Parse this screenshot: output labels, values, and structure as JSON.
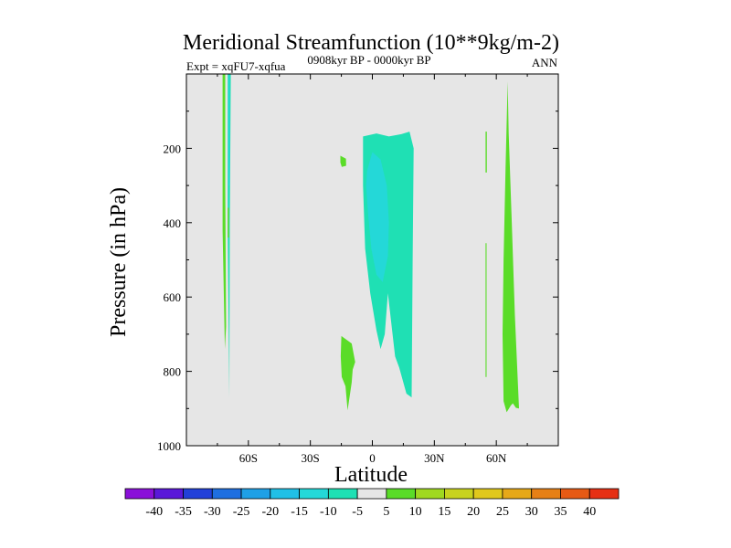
{
  "chart_data": {
    "type": "contour",
    "title": "Meridional Streamfunction (10**9kg/m-2)",
    "subtitle_left": "Expt = xqFU7-xqfua",
    "subtitle_center": "0908kyr BP - 0000kyr BP",
    "subtitle_right": "ANN",
    "xlabel": "Latitude",
    "ylabel": "Pressure (in hPa)",
    "xlim": [
      -90,
      90
    ],
    "ylim": [
      1000,
      0
    ],
    "x_ticks": [
      {
        "value": -60,
        "label": "60S"
      },
      {
        "value": -30,
        "label": "30S"
      },
      {
        "value": 0,
        "label": "0"
      },
      {
        "value": 30,
        "label": "30N"
      },
      {
        "value": 60,
        "label": "60N"
      }
    ],
    "y_ticks": [
      {
        "value": 200,
        "label": "200"
      },
      {
        "value": 400,
        "label": "400"
      },
      {
        "value": 600,
        "label": "600"
      },
      {
        "value": 800,
        "label": "800"
      },
      {
        "value": 1000,
        "label": "1000"
      }
    ],
    "background_color": "#e6e6e6",
    "colorbar": {
      "labels": [
        "-40",
        "-35",
        "-30",
        "-25",
        "-20",
        "-15",
        "-10",
        "-5",
        "5",
        "10",
        "15",
        "20",
        "25",
        "30",
        "35",
        "40"
      ],
      "colors": [
        "#8a10d8",
        "#5a18d8",
        "#2240d8",
        "#1f6fe0",
        "#1fa0e6",
        "#20c0e6",
        "#24d8d8",
        "#1fe0b4",
        "#e6e6e6",
        "#5adc28",
        "#a0d820",
        "#c8d21e",
        "#e0c81c",
        "#e6a818",
        "#e68016",
        "#e65a14",
        "#e63014"
      ]
    },
    "regions": [
      {
        "name": "band-70s",
        "level": "5",
        "points": [
          [
            -72.5,
            0
          ],
          [
            -71.2,
            0
          ],
          [
            -71.2,
            300
          ],
          [
            -70.8,
            680
          ],
          [
            -71.4,
            740
          ],
          [
            -72.5,
            420
          ]
        ]
      },
      {
        "name": "band-68s-neg",
        "level": "-5",
        "points": [
          [
            -70,
            0
          ],
          [
            -68.5,
            0
          ],
          [
            -69,
            400
          ],
          [
            -69.2,
            870
          ],
          [
            -70,
            420
          ]
        ]
      },
      {
        "name": "band-68s-neg-core",
        "level": "-10",
        "points": [
          [
            -69.6,
            0
          ],
          [
            -69.1,
            0
          ],
          [
            -69.1,
            300
          ],
          [
            -69.6,
            300
          ]
        ]
      },
      {
        "name": "band-68s-pos",
        "level": "5",
        "points": [
          [
            -70,
            360
          ],
          [
            -69.4,
            360
          ],
          [
            -69.4,
            440
          ],
          [
            -70,
            440
          ]
        ]
      },
      {
        "name": "blob-14s",
        "level": "5",
        "points": [
          [
            -15.5,
            220
          ],
          [
            -12.8,
            228
          ],
          [
            -12.7,
            247
          ],
          [
            -14.8,
            250
          ],
          [
            -15.5,
            238
          ]
        ]
      },
      {
        "name": "blob-10s-lower",
        "level": "5",
        "points": [
          [
            -15,
            705
          ],
          [
            -10,
            725
          ],
          [
            -8.3,
            775
          ],
          [
            -9.5,
            795
          ],
          [
            -10,
            830
          ],
          [
            -12,
            905
          ],
          [
            -13,
            840
          ],
          [
            -14.8,
            815
          ],
          [
            -15.3,
            760
          ]
        ]
      },
      {
        "name": "tropical-cell-outer",
        "level": "-5",
        "points": [
          [
            -4.5,
            168
          ],
          [
            2,
            160
          ],
          [
            8,
            168
          ],
          [
            14,
            162
          ],
          [
            18,
            155
          ],
          [
            20,
            200
          ],
          [
            19.5,
            500
          ],
          [
            19,
            870
          ],
          [
            16.5,
            860
          ],
          [
            13,
            790
          ],
          [
            11,
            760
          ],
          [
            7.5,
            590
          ],
          [
            6,
            700
          ],
          [
            4,
            740
          ],
          [
            2,
            690
          ],
          [
            -1,
            590
          ],
          [
            -3.5,
            470
          ],
          [
            -4.5,
            300
          ]
        ]
      },
      {
        "name": "tropical-cell-inner",
        "level": "-10",
        "points": [
          [
            -2.5,
            260
          ],
          [
            0,
            210
          ],
          [
            4,
            230
          ],
          [
            7,
            300
          ],
          [
            8,
            400
          ],
          [
            7.5,
            490
          ],
          [
            5,
            560
          ],
          [
            2,
            540
          ],
          [
            -0.5,
            470
          ],
          [
            -2,
            380
          ],
          [
            -3,
            300
          ]
        ]
      },
      {
        "name": "blob-55n-upper",
        "level": "5",
        "points": [
          [
            54.8,
            155
          ],
          [
            55.4,
            155
          ],
          [
            55.4,
            265
          ],
          [
            54.8,
            265
          ]
        ]
      },
      {
        "name": "blob-55n-lower",
        "level": "5",
        "points": [
          [
            54.8,
            455
          ],
          [
            55.3,
            455
          ],
          [
            55.3,
            815
          ],
          [
            54.8,
            815
          ]
        ]
      },
      {
        "name": "band-64n",
        "level": "5",
        "points": [
          [
            65.5,
            20
          ],
          [
            66,
            160
          ],
          [
            67.5,
            400
          ],
          [
            69,
            650
          ],
          [
            71,
            900
          ],
          [
            69.5,
            898
          ],
          [
            68,
            886
          ],
          [
            67,
            892
          ],
          [
            65,
            910
          ],
          [
            63.5,
            880
          ],
          [
            63,
            700
          ],
          [
            63.5,
            500
          ],
          [
            64.5,
            250
          ]
        ]
      }
    ]
  }
}
